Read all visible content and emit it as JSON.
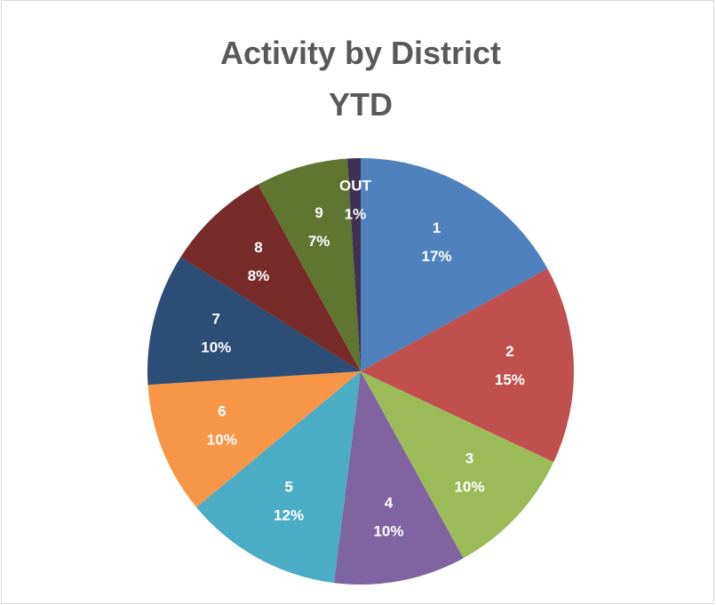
{
  "chart_data": {
    "type": "pie",
    "title": [
      "Activity by District",
      "YTD"
    ],
    "categories": [
      "1",
      "2",
      "3",
      "4",
      "5",
      "6",
      "7",
      "8",
      "9",
      "OUT"
    ],
    "values": [
      17,
      15,
      10,
      10,
      12,
      10,
      10,
      8,
      7,
      1
    ],
    "value_labels": [
      "17%",
      "15%",
      "10%",
      "10%",
      "12%",
      "10%",
      "10%",
      "8%",
      "7%",
      "1%"
    ],
    "colors": [
      "#4f81bd",
      "#c0504d",
      "#9bbb59",
      "#8064a2",
      "#4bacc6",
      "#f79646",
      "#2c4d75",
      "#772c2a",
      "#5f7530",
      "#403152"
    ]
  }
}
